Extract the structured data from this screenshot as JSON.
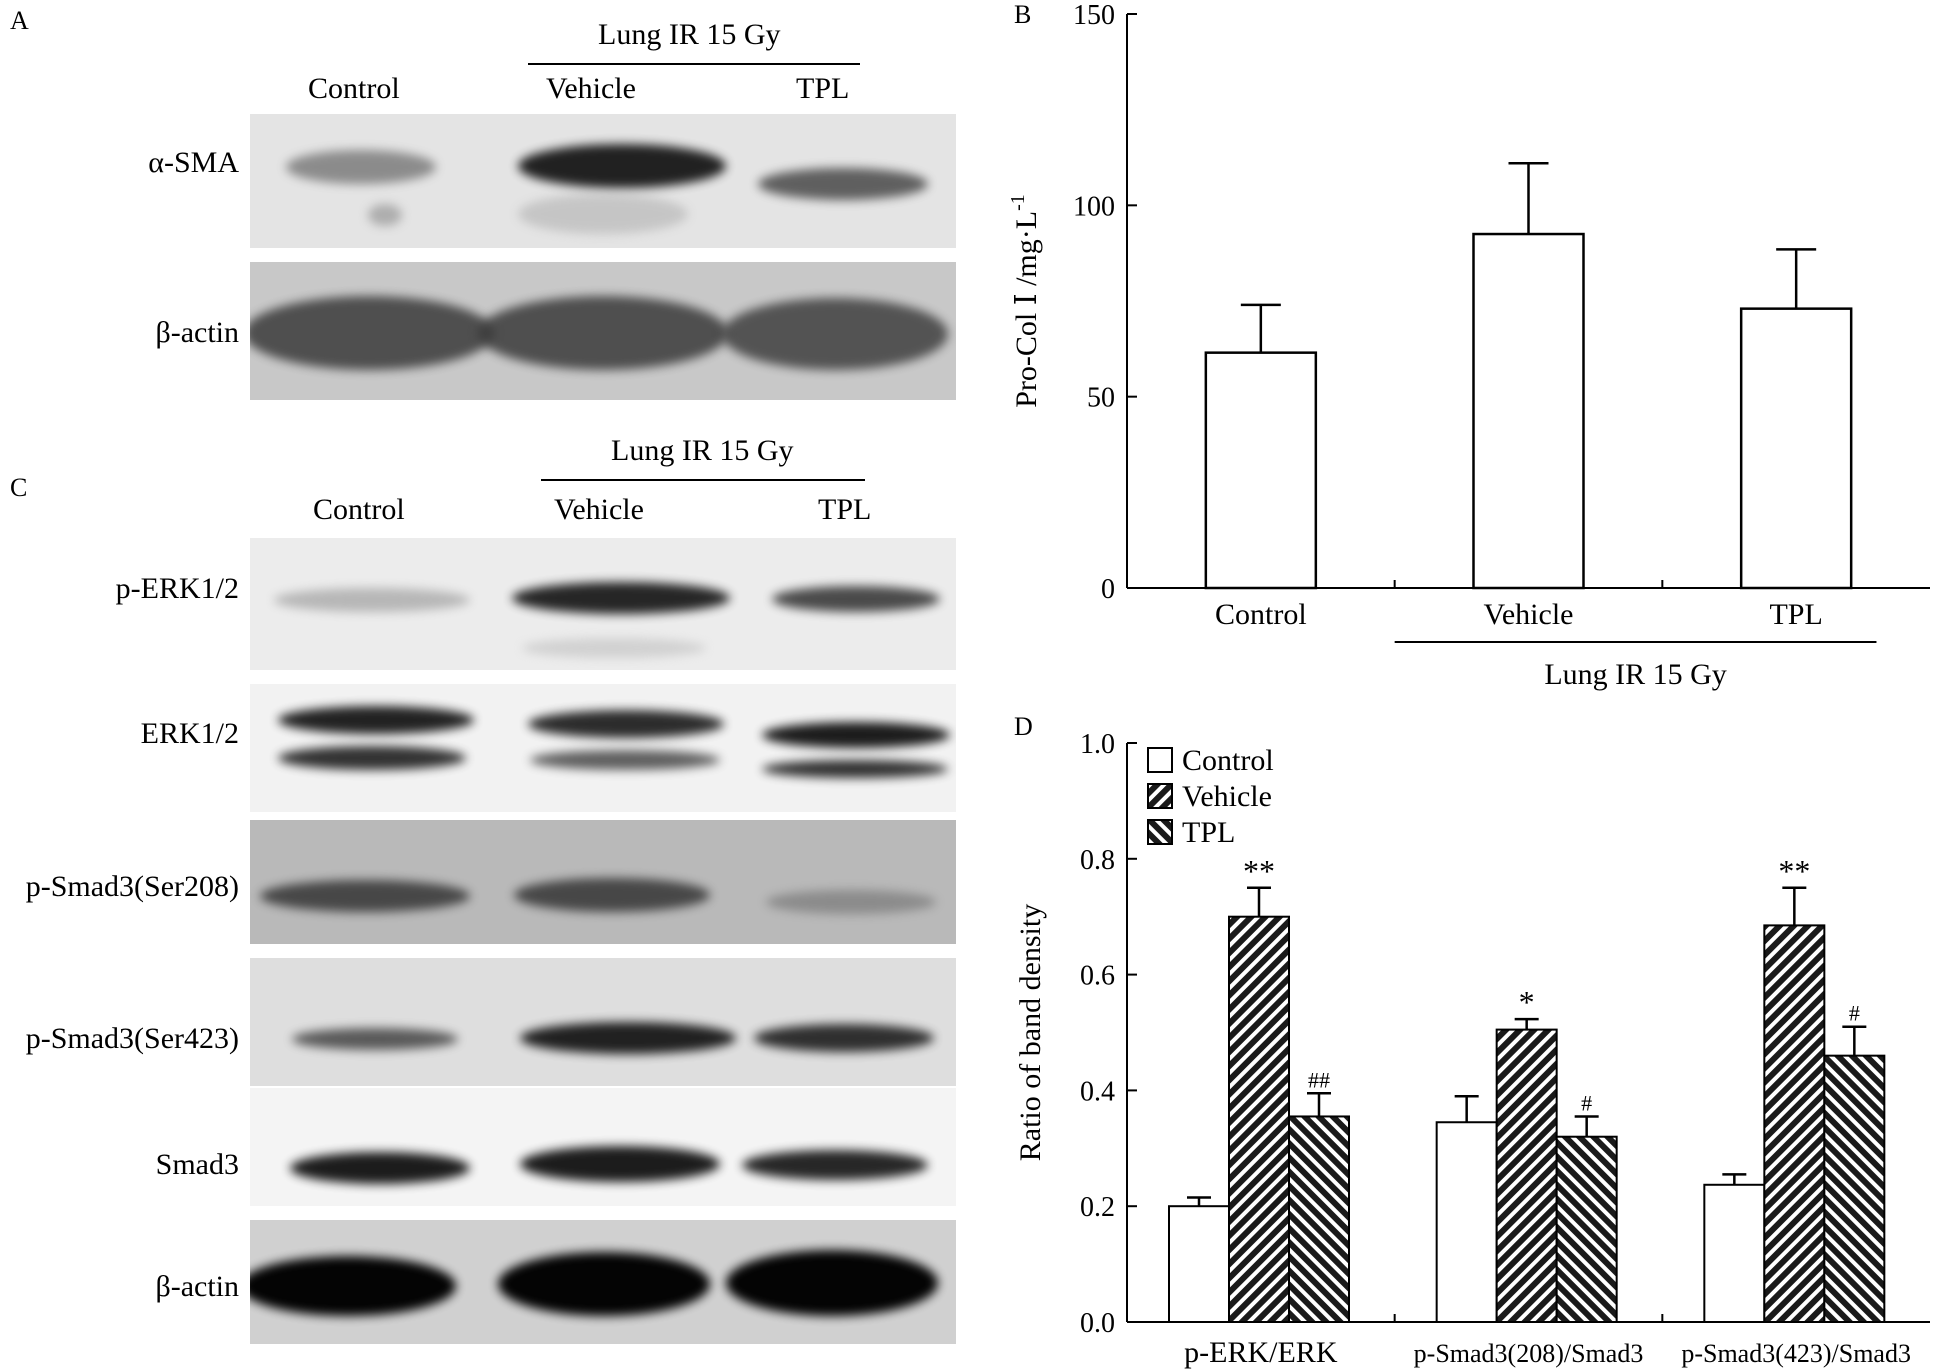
{
  "panel_letters": {
    "A": "A",
    "B": "B",
    "C": "C",
    "D": "D"
  },
  "panel_a": {
    "group_label": "Lung IR 15 Gy",
    "lanes": [
      "Control",
      "Vehicle",
      "TPL"
    ],
    "rows": [
      {
        "label": "α-SMA",
        "intensity": [
          0.45,
          0.95,
          0.65
        ]
      },
      {
        "label": "β-actin",
        "intensity": [
          0.8,
          0.8,
          0.8
        ]
      }
    ]
  },
  "panel_c": {
    "group_label": "Lung IR 15 Gy",
    "lanes": [
      "Control",
      "Vehicle",
      "TPL"
    ],
    "rows": [
      {
        "label": "p-ERK1/2",
        "intensity": [
          0.25,
          0.9,
          0.75
        ]
      },
      {
        "label": "ERK1/2",
        "intensity": [
          0.95,
          0.9,
          0.95
        ]
      },
      {
        "label": "p-Smad3(Ser208)",
        "intensity": [
          0.65,
          0.75,
          0.3
        ]
      },
      {
        "label": "p-Smad3(Ser423)",
        "intensity": [
          0.5,
          0.95,
          0.85
        ]
      },
      {
        "label": "Smad3",
        "intensity": [
          0.95,
          0.95,
          0.9
        ]
      },
      {
        "label": "β-actin",
        "intensity": [
          1.0,
          1.0,
          1.0
        ]
      }
    ]
  },
  "chart_data": [
    {
      "panel": "B",
      "type": "bar",
      "categories": [
        "Control",
        "Vehicle",
        "TPL"
      ],
      "values": [
        61.5,
        92.5,
        73
      ],
      "errors": [
        12.5,
        18.5,
        15.5
      ],
      "ylabel": "Pro-Col Ⅰ /mg·L",
      "ylabel_sup": "-1",
      "ylim": [
        0,
        150
      ],
      "yticks": [
        "0",
        "50",
        "100",
        "150"
      ],
      "group_label": "Lung IR 15 Gy",
      "grid": false
    },
    {
      "panel": "D",
      "type": "bar",
      "categories": [
        "p-ERK/ERK",
        "p-Smad3(208)/Smad3",
        "p-Smad3(423)/Smad3"
      ],
      "series": [
        {
          "name": "Control",
          "values": [
            0.2,
            0.345,
            0.237
          ],
          "errors": [
            0.015,
            0.045,
            0.018
          ],
          "marks": [
            "",
            "",
            ""
          ]
        },
        {
          "name": "Vehicle",
          "values": [
            0.7,
            0.505,
            0.685
          ],
          "errors": [
            0.05,
            0.018,
            0.065
          ],
          "marks": [
            "**",
            "*",
            "**"
          ]
        },
        {
          "name": "TPL",
          "values": [
            0.355,
            0.32,
            0.46
          ],
          "errors": [
            0.04,
            0.035,
            0.05
          ],
          "marks": [
            "##",
            "#",
            "#"
          ]
        }
      ],
      "ylabel": "Ratio of band density",
      "ylim": [
        0,
        1.0
      ],
      "yticks": [
        "0.0",
        "0.2",
        "0.4",
        "0.6",
        "0.8",
        "1.0"
      ],
      "legend": "top-left",
      "grid": false
    }
  ]
}
